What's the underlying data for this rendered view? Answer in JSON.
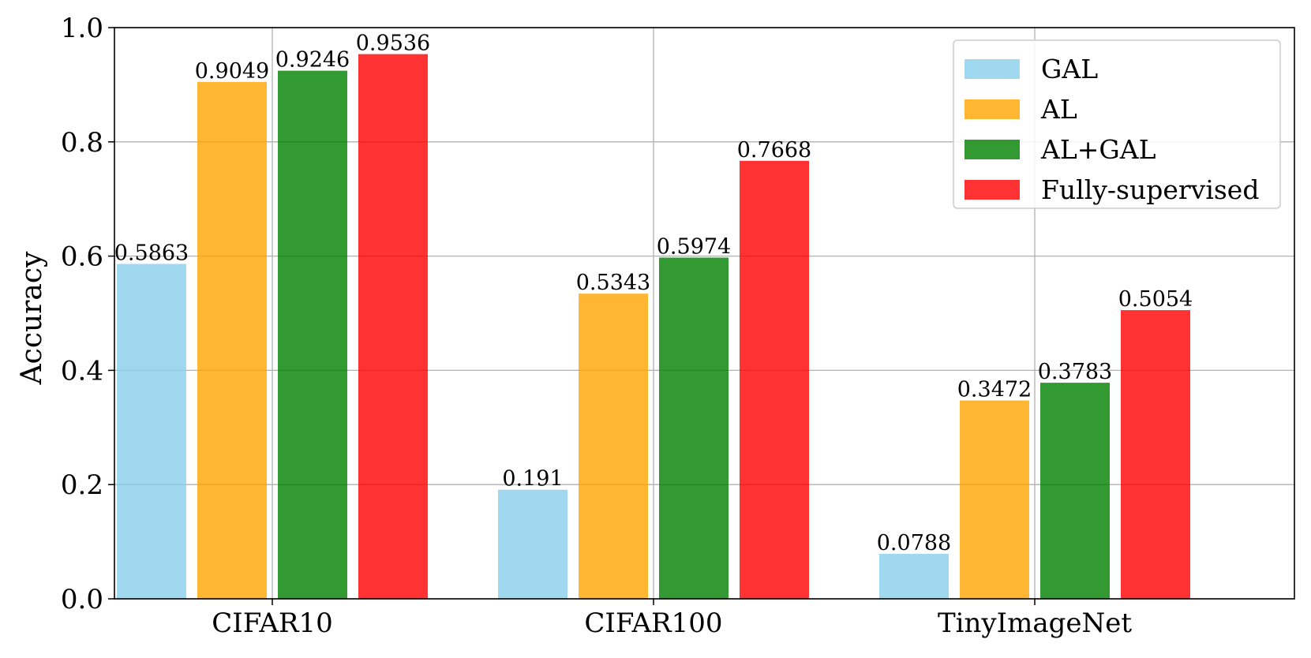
{
  "chart_data": {
    "type": "bar",
    "title": "",
    "xlabel": "",
    "ylabel": "Accuracy",
    "ylim": [
      0,
      1.0
    ],
    "yticks": [
      "0.0",
      "0.2",
      "0.4",
      "0.6",
      "0.8",
      "1.0"
    ],
    "categories": [
      "CIFAR10",
      "CIFAR100",
      "TinyImageNet"
    ],
    "series": [
      {
        "name": "GAL",
        "color": "#87ceeb",
        "values": [
          0.5863,
          0.191,
          0.0788
        ],
        "labels": [
          "0.5863",
          "0.191",
          "0.0788"
        ]
      },
      {
        "name": "AL",
        "color": "#ffa500",
        "values": [
          0.9049,
          0.5343,
          0.3472
        ],
        "labels": [
          "0.9049",
          "0.5343",
          "0.3472"
        ]
      },
      {
        "name": "AL+GAL",
        "color": "#008000",
        "values": [
          0.9246,
          0.5974,
          0.3783
        ],
        "labels": [
          "0.9246",
          "0.5974",
          "0.3783"
        ]
      },
      {
        "name": "Fully-supervised",
        "color": "#ff0000",
        "values": [
          0.9536,
          0.7668,
          0.5054
        ],
        "labels": [
          "0.9536",
          "0.7668",
          "0.5054"
        ]
      }
    ],
    "bar_alpha": 0.8,
    "grid": true,
    "legend_position": "upper right"
  }
}
